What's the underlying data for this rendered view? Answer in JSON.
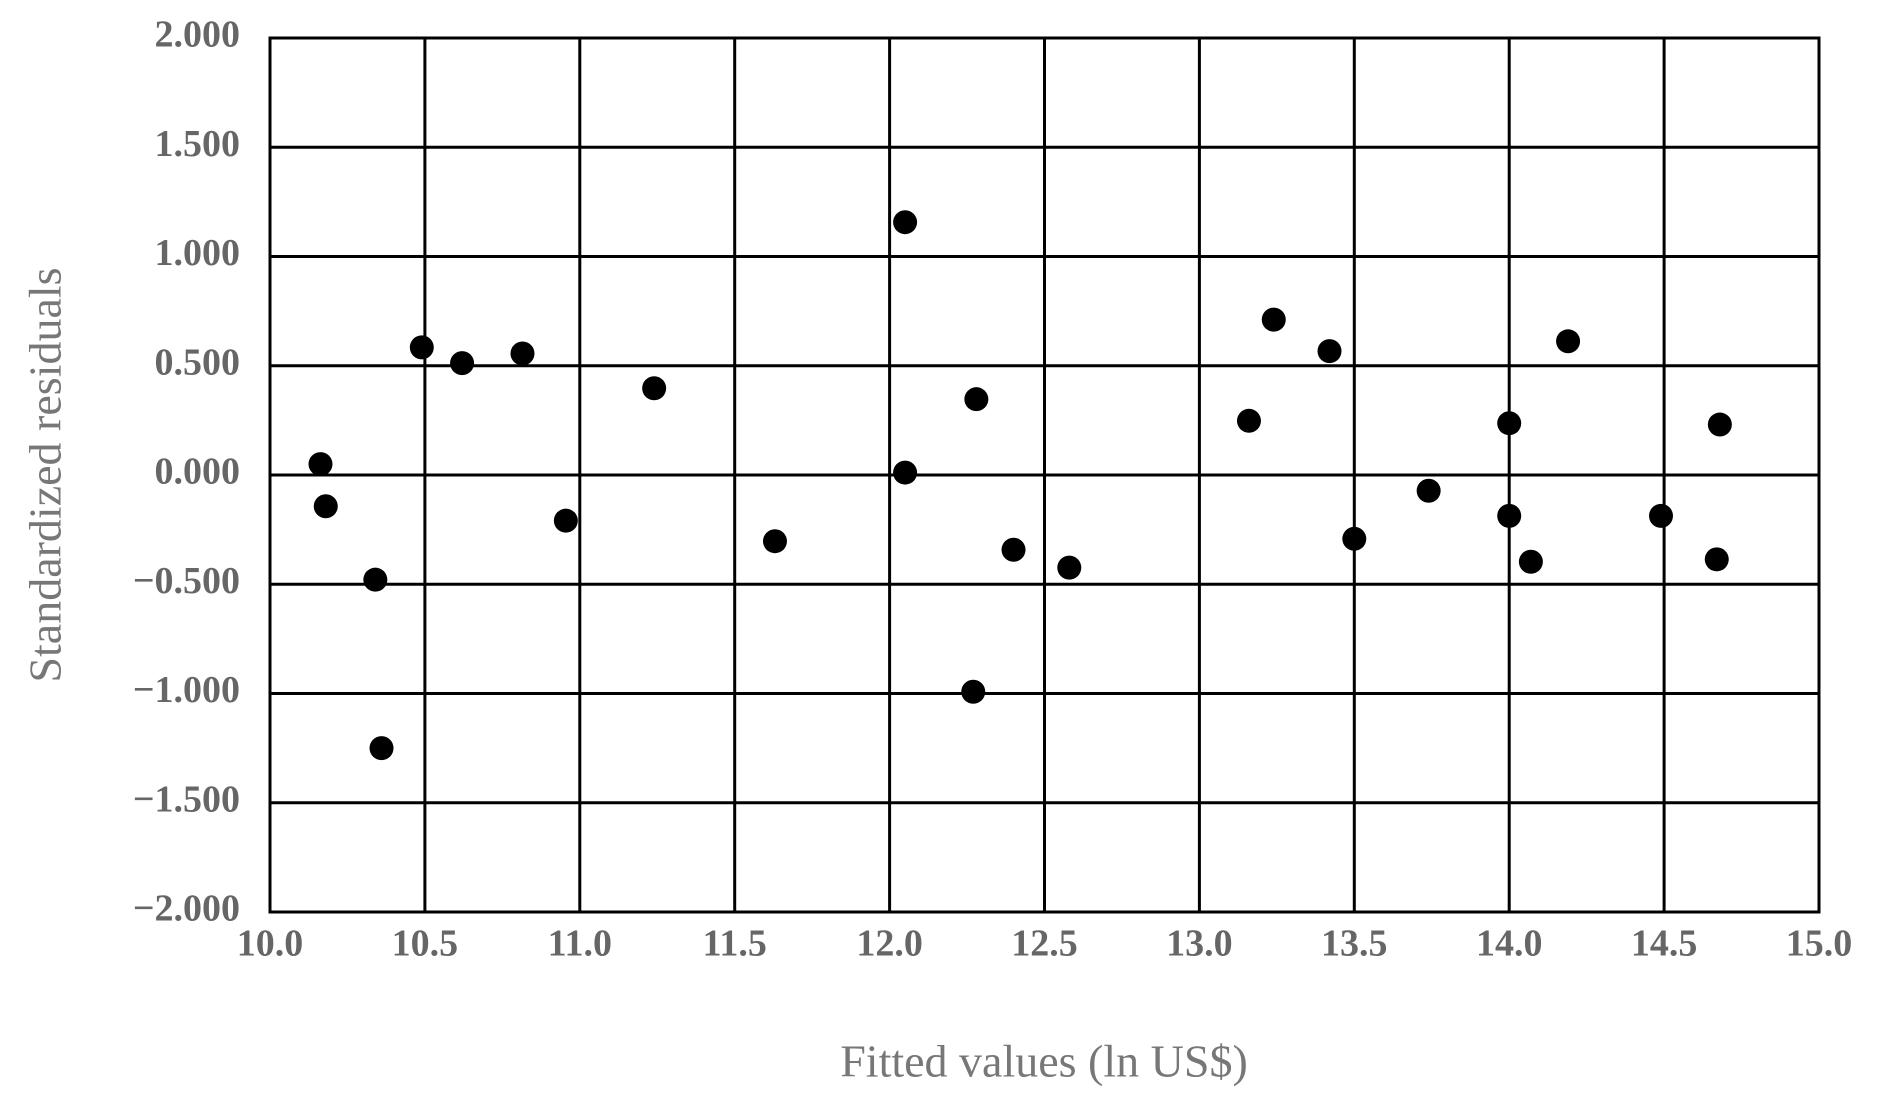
{
  "chart_data": {
    "type": "scatter",
    "x_label": "Fitted values (ln US$)",
    "y_label": "Standardized residuals",
    "x": [
      10.163,
      10.18,
      10.34,
      10.36,
      10.49,
      10.62,
      10.815,
      10.955,
      11.24,
      11.63,
      12.05,
      12.05,
      12.27,
      12.28,
      12.4,
      12.58,
      13.16,
      13.24,
      13.42,
      13.5,
      13.74,
      14.0,
      14.0,
      14.07,
      14.19,
      14.49,
      14.68,
      14.67
    ],
    "values": [
      0.05,
      -0.143,
      -0.479,
      -1.25,
      0.584,
      0.512,
      0.556,
      -0.209,
      0.397,
      -0.303,
      1.157,
      0.011,
      -0.992,
      0.347,
      -0.342,
      -0.424,
      0.248,
      0.711,
      0.567,
      -0.292,
      -0.072,
      0.237,
      -0.187,
      -0.397,
      0.612,
      -0.187,
      0.231,
      -0.386
    ],
    "color": "#000000",
    "xlim": [
      10,
      15
    ],
    "ylim": [
      -2,
      2
    ],
    "xticks": [
      {
        "value": 10,
        "label": "10.0"
      },
      10.5,
      {
        "value": 11,
        "label": "11.0"
      },
      11.5,
      {
        "value": 12,
        "label": "12.0"
      },
      12.5,
      {
        "value": 13,
        "label": "13.0"
      },
      13.5,
      {
        "value": 14,
        "label": "14.0"
      },
      14.5,
      {
        "value": 15,
        "label": "15.0"
      }
    ],
    "yticks": [
      {
        "value": -2,
        "label": "−2.000"
      },
      {
        "value": -1.5,
        "label": "−1.500"
      },
      {
        "value": -1,
        "label": "−1.000"
      },
      {
        "value": -0.5,
        "label": "−0.500"
      },
      {
        "value": 0,
        "label": "0.000"
      },
      {
        "value": 0.5,
        "label": "0.500"
      },
      {
        "value": 1,
        "label": "1.000"
      },
      {
        "value": 1.5,
        "label": "1.500"
      },
      {
        "value": 2,
        "label": "2.000"
      }
    ],
    "grid": true
  }
}
